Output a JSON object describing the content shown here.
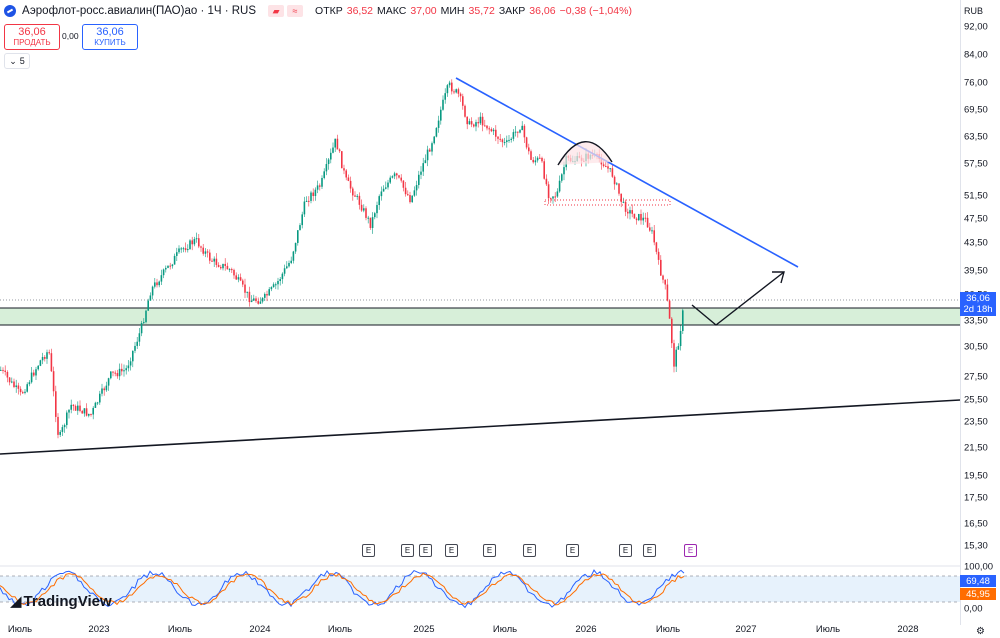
{
  "header": {
    "symbol_title": "Аэрофлот-росс.авиалин(ПАО)ао · 1Ч · RUS",
    "ohlc": [
      {
        "key": "ОТКР",
        "value": "36,52"
      },
      {
        "key": "МАКС",
        "value": "37,00"
      },
      {
        "key": "МИН",
        "value": "35,72"
      },
      {
        "key": "ЗАКР",
        "value": "36,06"
      },
      {
        "key": "",
        "value": "−0,38 (−1,04%)"
      }
    ]
  },
  "trade": {
    "sell_price": "36,06",
    "sell_label": "ПРОДАТЬ",
    "spread": "0,00",
    "buy_price": "36,06",
    "buy_label": "КУПИТЬ"
  },
  "indicators_toggle": {
    "count": "5"
  },
  "price_axis": {
    "currency": "RUB",
    "ticks": [
      "92,00",
      "84,00",
      "76,00",
      "69,50",
      "63,50",
      "57,50",
      "51,50",
      "47,50",
      "43,50",
      "39,50",
      "36,50",
      "33,50",
      "30,50",
      "27,50",
      "25,50",
      "23,50",
      "21,50",
      "19,50",
      "17,50",
      "16,50",
      "15,30"
    ],
    "current_price": "36,06",
    "countdown": "2d 18h"
  },
  "stoch_axis": {
    "ticks": [
      "100,00",
      "0,00"
    ],
    "k_value": "69,48",
    "d_value": "45,95"
  },
  "time_axis": {
    "labels": [
      "Июль",
      "2023",
      "Июль",
      "2024",
      "Июль",
      "2025",
      "Июль",
      "2026",
      "Июль",
      "2027",
      "Июль",
      "2028"
    ]
  },
  "events": {
    "label": "E"
  },
  "brand": {
    "text": "TradingView"
  },
  "colors": {
    "up": "#089981",
    "down": "#f23645",
    "trendline_blue": "#2962ff",
    "zone_fill": "#d7efd9",
    "price_tag": "#2962ff",
    "stoch_k": "#2962ff",
    "stoch_d": "#ff6d00"
  }
}
